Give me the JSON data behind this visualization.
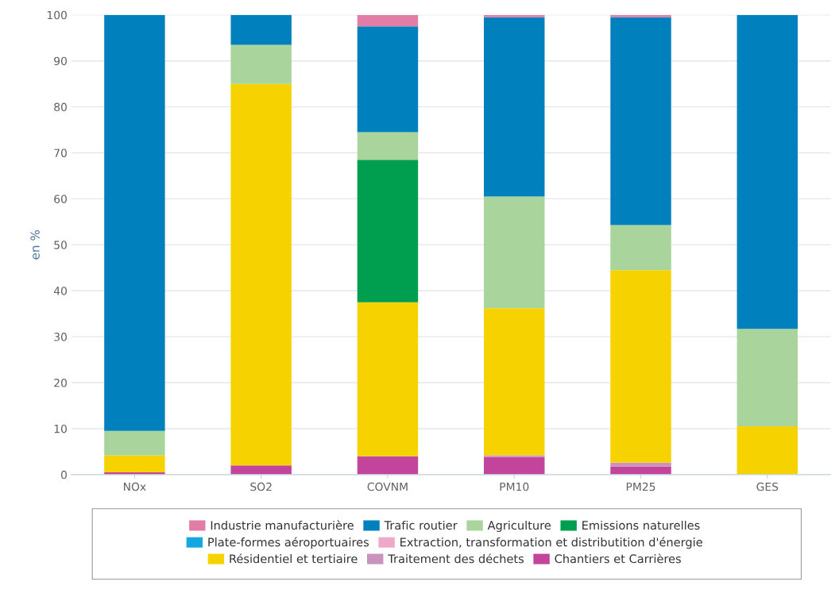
{
  "chart_data": {
    "type": "bar",
    "stacked": true,
    "ylabel": "en %",
    "categories": [
      "NOx",
      "SO2",
      "COVNM",
      "PM10",
      "PM25",
      "GES"
    ],
    "ylim": [
      0,
      100
    ],
    "yticks": [
      0,
      10,
      20,
      30,
      40,
      50,
      60,
      70,
      80,
      90,
      100
    ],
    "grid": "y",
    "legend": "bottom",
    "series": [
      {
        "name": "Chantiers et Carrières",
        "color": "#c3449b",
        "values": [
          0.5,
          2,
          4,
          3.8,
          1.8,
          null
        ]
      },
      {
        "name": "Traitement des déchets",
        "color": "#c993bf",
        "values": [
          null,
          null,
          null,
          0.4,
          0.8,
          null
        ]
      },
      {
        "name": "Résidentiel et tertiaire",
        "color": "#f6d300",
        "values": [
          3.7,
          83,
          33.5,
          32,
          41.9,
          10.5
        ]
      },
      {
        "name": "Extraction, transformation et distributition d'énergie",
        "color": "#f0a8c8",
        "values": [
          null,
          null,
          null,
          null,
          null,
          null
        ]
      },
      {
        "name": "Plate-formes aéroportuaires",
        "color": "#15a7e0",
        "values": [
          null,
          null,
          null,
          null,
          null,
          null
        ]
      },
      {
        "name": "Emissions naturelles",
        "color": "#009e4f",
        "values": [
          null,
          null,
          31,
          null,
          null,
          null
        ]
      },
      {
        "name": "Agriculture",
        "color": "#a9d59c",
        "values": [
          5.3,
          8.5,
          6,
          24.3,
          9.8,
          21.2
        ]
      },
      {
        "name": "Trafic routier",
        "color": "#0080bc",
        "values": [
          90.5,
          6.5,
          23,
          39,
          45.2,
          68.3
        ]
      },
      {
        "name": "Industrie manufacturière",
        "color": "#e17da6",
        "values": [
          null,
          null,
          2.5,
          0.5,
          0.5,
          null
        ]
      }
    ]
  }
}
